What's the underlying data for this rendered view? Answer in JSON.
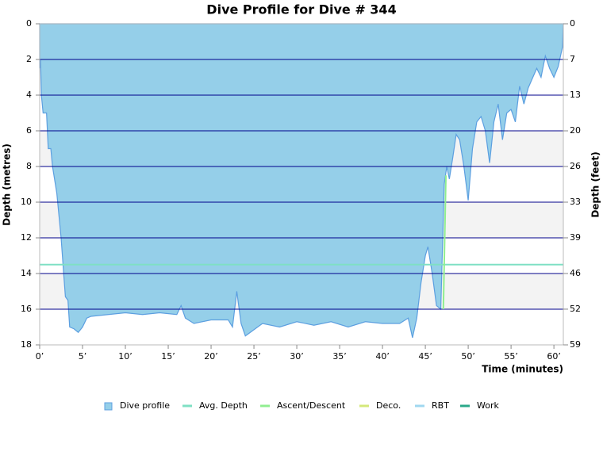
{
  "chart_data": {
    "type": "area",
    "title": "Dive Profile for Dive # 344",
    "x_label": "Time (minutes)",
    "y_label": "Depth (metres)",
    "y2_label": "Depth (feet)",
    "xlim": [
      0,
      61.1
    ],
    "ylim": [
      0,
      18
    ],
    "y2lim": [
      0,
      59.06
    ],
    "inverted_y": true,
    "xticks": [
      {
        "value": 0,
        "label": "0’"
      },
      {
        "value": 5,
        "label": "5’"
      },
      {
        "value": 10,
        "label": "10’"
      },
      {
        "value": 15,
        "label": "15’"
      },
      {
        "value": 20,
        "label": "20’"
      },
      {
        "value": 25,
        "label": "25’"
      },
      {
        "value": 30,
        "label": "30’"
      },
      {
        "value": 35,
        "label": "35’"
      },
      {
        "value": 40,
        "label": "40’"
      },
      {
        "value": 45,
        "label": "45’"
      },
      {
        "value": 50,
        "label": "50’"
      },
      {
        "value": 55,
        "label": "55’"
      },
      {
        "value": 60,
        "label": "60’"
      }
    ],
    "yticks": [
      0,
      2,
      4,
      6,
      8,
      10,
      12,
      14,
      16,
      18
    ],
    "y2ticks": [
      0,
      {
        "value": 6.56,
        "label": "7"
      },
      {
        "value": 13.12,
        "label": "13"
      },
      {
        "value": 19.69,
        "label": "20"
      },
      {
        "value": 26.25,
        "label": "26"
      },
      {
        "value": 32.81,
        "label": "33"
      },
      {
        "value": 39.37,
        "label": "39"
      },
      {
        "value": 45.93,
        "label": "46"
      },
      {
        "value": 52.49,
        "label": "52"
      },
      {
        "value": 59.06,
        "label": "59"
      }
    ],
    "grid": true,
    "legend": "bottom",
    "series": [
      {
        "name": "Dive profile",
        "color": "#95cfe9",
        "stroke": "#5c9fe0",
        "style": "area",
        "x": [
          0,
          0.1,
          0.2,
          0.4,
          0.8,
          1,
          1.3,
          1.5,
          2,
          2.5,
          2.8,
          3,
          3.3,
          3.5,
          4,
          4.5,
          5,
          5.5,
          6,
          8,
          10,
          12,
          14,
          16,
          16.5,
          17,
          18,
          20,
          22,
          22.5,
          23,
          23.5,
          24,
          26,
          28,
          30,
          32,
          34,
          36,
          38,
          40,
          42,
          43,
          43.5,
          44,
          44.5,
          45,
          45.3,
          45.8,
          46.3,
          46.8,
          47.2,
          47.5,
          47.8,
          48.2,
          48.6,
          49,
          49.5,
          50,
          50.5,
          51,
          51.5,
          52,
          52.5,
          53,
          53.5,
          54,
          54.5,
          55,
          55.5,
          56,
          56.5,
          57,
          58,
          58.5,
          59,
          59.5,
          60,
          60.5,
          61,
          61.1
        ],
        "values": [
          2.5,
          2,
          4,
          5,
          5,
          7,
          7,
          8,
          9.5,
          12,
          14,
          15.3,
          15.5,
          17,
          17.1,
          17.3,
          17,
          16.5,
          16.4,
          16.3,
          16.2,
          16.3,
          16.2,
          16.3,
          15.8,
          16.5,
          16.8,
          16.6,
          16.6,
          17,
          15,
          16.8,
          17.5,
          16.8,
          17,
          16.7,
          16.9,
          16.7,
          17,
          16.7,
          16.8,
          16.8,
          16.5,
          17.6,
          16.5,
          14.5,
          13,
          12.5,
          14,
          15.8,
          16,
          9,
          8,
          8.7,
          7.5,
          6.2,
          6.5,
          8,
          9.9,
          7,
          5.5,
          5.2,
          6,
          7.8,
          5.5,
          4.5,
          6.5,
          5,
          4.8,
          5.5,
          3.5,
          4.5,
          3.6,
          2.5,
          3,
          1.8,
          2.5,
          3,
          2.4,
          1.3,
          0
        ]
      },
      {
        "name": "Avg. Depth",
        "color": "#7fe0c4",
        "style": "line",
        "x": [
          0,
          61.1
        ],
        "values": [
          13.5,
          13.5
        ]
      },
      {
        "name": "Ascent/Descent",
        "color": "#90ee90",
        "style": "line",
        "x": [
          47.1,
          47.4
        ],
        "values": [
          16,
          8.5
        ]
      },
      {
        "name": "Deco.",
        "color": "#d4e87a",
        "style": "line",
        "x": [],
        "values": []
      },
      {
        "name": "RBT",
        "color": "#a0d8f0",
        "style": "line",
        "x": [],
        "values": []
      },
      {
        "name": "Work",
        "color": "#2aa889",
        "style": "line",
        "x": [],
        "values": []
      }
    ]
  }
}
